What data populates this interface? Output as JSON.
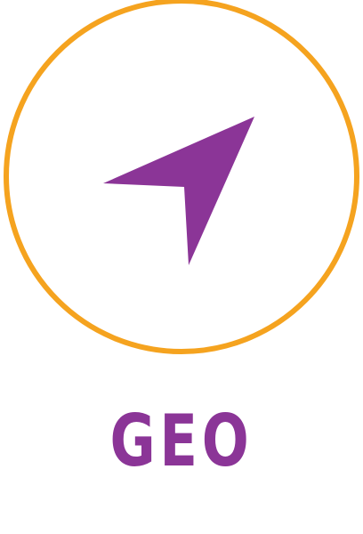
{
  "label": "GEO",
  "icon": "navigation-arrow-icon",
  "colors": {
    "ring": "#F5A31F",
    "arrow": "#8B3597",
    "label": "#8B3597",
    "background": "#FFFFFF"
  }
}
